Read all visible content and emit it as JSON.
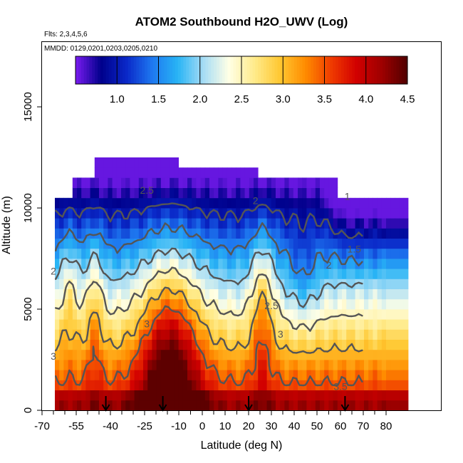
{
  "title": "ATOM2 Southbound H2O_UWV (Log)",
  "flights_note": "Flts: 2,3,4,5,6",
  "dates_note": "MMDD: 0129,0201,0203,0205,0210",
  "chart_data": {
    "type": "heatmap",
    "title": "ATOM2 Southbound H2O_UWV (Log)",
    "xlabel": "Latitude (deg N)",
    "ylabel": "Altitude (m)",
    "xlim": [
      -70,
      80
    ],
    "ylim": [
      0,
      18000
    ],
    "x_ticks": [
      -70,
      -55,
      -40,
      -25,
      -10,
      0,
      10,
      20,
      30,
      40,
      50,
      60,
      70,
      80
    ],
    "x_tick_labels": [
      "-70",
      "-55",
      "-40",
      "-25",
      "-10",
      "0",
      "10",
      "20",
      "30",
      "40",
      "50",
      "60",
      "70",
      "80"
    ],
    "y_ticks": [
      0,
      5000,
      10000,
      15000
    ],
    "y_tick_labels": [
      "0",
      "5000",
      "10000",
      "15000"
    ],
    "colorbar": {
      "min": 0.5,
      "max": 4.5,
      "ticks": [
        1.0,
        1.5,
        2.0,
        2.5,
        3.0,
        3.5,
        4.0,
        4.5
      ],
      "tick_labels": [
        "1.0",
        "1.5",
        "2.0",
        "2.5",
        "3.0",
        "3.5",
        "4.0",
        "4.5"
      ],
      "colors": [
        "#7a1bf0",
        "#00008b",
        "#0a28c8",
        "#1e78f0",
        "#28b4f5",
        "#a5dcf5",
        "#ffffe6",
        "#ffeb8c",
        "#ffc832",
        "#ff8c00",
        "#f03c00",
        "#d20000",
        "#9e0000",
        "#500000"
      ]
    },
    "contour_labels": [
      {
        "text": "2.5",
        "lat": -24,
        "alt": 10700
      },
      {
        "text": "2",
        "lat": 23,
        "alt": 10200
      },
      {
        "text": "1",
        "lat": 63,
        "alt": 10400
      },
      {
        "text": "1.5",
        "lat": 66,
        "alt": 7800
      },
      {
        "text": "2",
        "lat": 55,
        "alt": 7000
      },
      {
        "text": "2",
        "lat": -65,
        "alt": 6700
      },
      {
        "text": "2.5",
        "lat": 30,
        "alt": 5000
      },
      {
        "text": "3",
        "lat": -24,
        "alt": 4100
      },
      {
        "text": "3",
        "lat": 34,
        "alt": 3600
      },
      {
        "text": "3",
        "lat": -65,
        "alt": 2500
      },
      {
        "text": "3.5",
        "lat": 60,
        "alt": 1000
      }
    ],
    "flight_markers_lat": [
      -42,
      -17,
      20,
      62
    ]
  }
}
